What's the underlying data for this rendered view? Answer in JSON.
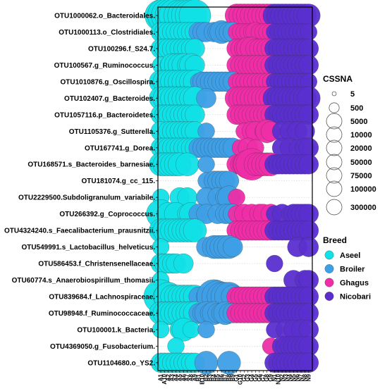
{
  "chart_data": {
    "type": "scatter",
    "subtype": "bubble",
    "grid": "horizontal dotted",
    "legend_placement": "right",
    "rows": [
      "OTU1000062.o_Bacteroidales.",
      "OTU1000113.o_Clostridiales.",
      "OTU100296.f_S24.7.",
      "OTU100567.g_Ruminococcus.",
      "OTU1010876.g_Oscillospira.",
      "OTU102407.g_Bacteroides.",
      "OTU1057116.p_Bacteroidetes.",
      "OTU1105376.g_Sutterella.",
      "OTU167741.g_Dorea.",
      "OTU168571.s_Bacteroides_barnesiae.",
      "OTU181074.g_cc_115.",
      "OTU2229500.Subdoligranulum_variabile.",
      "OTU266392.g_Coprococcus.",
      "OTU4324240.s_Faecalibacterium_prausnitzii.",
      "OTU549991.s_Lactobacillus_helveticus.",
      "OTU586453.f_Christensenellaceae.",
      "OTU60774.s_Anaerobiospirillum_thomasii.",
      "OTU839684.f_Lachnospiraceae.",
      "OTU98948.f_Ruminococcaceae.",
      "OTU100001.k_Bacteria.",
      "OTU4369050.g_Fusobacterium.",
      "OTU1104680.o_YS2."
    ],
    "samples": [
      "A1",
      "A10",
      "A2",
      "A3",
      "A4",
      "A5",
      "A6",
      "A7",
      "A8",
      "A9",
      "B1",
      "B10",
      "B2",
      "B3",
      "B4",
      "B5",
      "B6",
      "B7",
      "B8",
      "B9",
      "G1",
      "G10",
      "G2",
      "G3",
      "G4",
      "G5",
      "G6",
      "G7",
      "G8",
      "G9",
      "N1",
      "N10",
      "N2",
      "N3",
      "N4",
      "N5",
      "N6",
      "N7",
      "N8",
      "N9"
    ],
    "size_legend": {
      "title": "CSSNA",
      "entries": [
        {
          "label": "5",
          "value": 5
        },
        {
          "label": "500",
          "value": 500
        },
        {
          "label": "5000",
          "value": 5000
        },
        {
          "label": "10000",
          "value": 10000
        },
        {
          "label": "20000",
          "value": 20000
        },
        {
          "label": "50000",
          "value": 50000
        },
        {
          "label": "75000",
          "value": 75000
        },
        {
          "label": "100000",
          "value": 100000
        },
        {
          "label": "300000",
          "value": 300000
        }
      ]
    },
    "color_legend": {
      "title": "Breed",
      "entries": [
        {
          "label": "Aseel",
          "color": "#11e0e6",
          "prefix": "A"
        },
        {
          "label": "Broiler",
          "color": "#3f9fe6",
          "prefix": "B"
        },
        {
          "label": "Ghagus",
          "color": "#ee2da6",
          "prefix": "G"
        },
        {
          "label": "Nicobari",
          "color": "#5b2fcf",
          "prefix": "N"
        }
      ]
    },
    "values": [
      [
        75000,
        100000,
        100000,
        100000,
        100000,
        75000,
        75000,
        75000,
        75000,
        75000,
        0,
        0,
        0,
        0,
        0,
        0,
        0,
        0,
        0,
        0,
        20000,
        20000,
        20000,
        20000,
        20000,
        20000,
        20000,
        20000,
        20000,
        20000,
        20000,
        20000,
        20000,
        20000,
        20000,
        20000,
        20000,
        20000,
        20000,
        20000
      ],
      [
        10000,
        10000,
        10000,
        10000,
        10000,
        10000,
        10000,
        10000,
        10000,
        10000,
        10000,
        10000,
        10000,
        0,
        10000,
        10000,
        20000,
        10000,
        10000,
        10000,
        5000,
        5000,
        5000,
        5000,
        5000,
        10000,
        5000,
        5000,
        5000,
        5000,
        5000,
        5000,
        5000,
        5000,
        5000,
        5000,
        5000,
        5000,
        5000,
        5000
      ],
      [
        10000,
        10000,
        10000,
        10000,
        10000,
        10000,
        10000,
        10000,
        10000,
        10000,
        0,
        0,
        0,
        0,
        0,
        0,
        0,
        0,
        0,
        0,
        10000,
        10000,
        10000,
        20000,
        20000,
        10000,
        10000,
        10000,
        10000,
        10000,
        10000,
        10000,
        10000,
        10000,
        10000,
        10000,
        10000,
        10000,
        10000,
        10000
      ],
      [
        5000,
        0,
        5000,
        20000,
        20000,
        20000,
        20000,
        10000,
        20000,
        10000,
        0,
        0,
        0,
        0,
        0,
        0,
        0,
        0,
        0,
        0,
        10000,
        10000,
        10000,
        10000,
        10000,
        10000,
        10000,
        10000,
        10000,
        10000,
        10000,
        10000,
        10000,
        10000,
        10000,
        10000,
        10000,
        10000,
        10000,
        10000
      ],
      [
        20000,
        20000,
        20000,
        20000,
        20000,
        20000,
        20000,
        20000,
        20000,
        20000,
        5000,
        10000,
        10000,
        10000,
        10000,
        10000,
        10000,
        10000,
        10000,
        10000,
        5000,
        5000,
        5000,
        5000,
        5000,
        5000,
        5000,
        5000,
        5000,
        5000,
        5000,
        5000,
        5000,
        5000,
        5000,
        5000,
        5000,
        5000,
        5000,
        5000
      ],
      [
        20000,
        20000,
        20000,
        20000,
        20000,
        20000,
        20000,
        20000,
        20000,
        20000,
        0,
        0,
        10000,
        0,
        0,
        0,
        0,
        0,
        0,
        0,
        20000,
        20000,
        20000,
        20000,
        20000,
        20000,
        20000,
        20000,
        20000,
        20000,
        20000,
        20000,
        20000,
        20000,
        20000,
        20000,
        20000,
        20000,
        20000,
        20000
      ],
      [
        10000,
        10000,
        10000,
        10000,
        10000,
        10000,
        10000,
        10000,
        10000,
        10000,
        0,
        0,
        0,
        0,
        0,
        0,
        0,
        0,
        0,
        0,
        10000,
        10000,
        10000,
        10000,
        10000,
        10000,
        10000,
        10000,
        10000,
        10000,
        10000,
        10000,
        10000,
        10000,
        10000,
        10000,
        10000,
        10000,
        10000,
        10000
      ],
      [
        10000,
        0,
        10000,
        10000,
        10000,
        10000,
        10000,
        10000,
        10000,
        10000,
        0,
        0,
        5000,
        0,
        0,
        0,
        0,
        0,
        0,
        0,
        0,
        0,
        5000,
        0,
        10000,
        10000,
        0,
        5000,
        20000,
        10000,
        0,
        0,
        10000,
        0,
        10000,
        0,
        10000,
        0,
        10000,
        0
      ],
      [
        10000,
        10000,
        10000,
        10000,
        10000,
        10000,
        10000,
        10000,
        10000,
        10000,
        10000,
        10000,
        10000,
        10000,
        10000,
        10000,
        10000,
        10000,
        10000,
        10000,
        0,
        5000,
        0,
        10000,
        0,
        5000,
        0,
        0,
        0,
        0,
        0,
        0,
        10000,
        0,
        10000,
        0,
        5000,
        0,
        10000,
        10000
      ],
      [
        20000,
        20000,
        20000,
        20000,
        20000,
        20000,
        0,
        20000,
        0,
        0,
        0,
        0,
        5000,
        0,
        0,
        0,
        0,
        0,
        0,
        0,
        10000,
        10000,
        20000,
        50000,
        75000,
        20000,
        20000,
        20000,
        20000,
        20000,
        10000,
        10000,
        10000,
        10000,
        10000,
        10000,
        10000,
        10000,
        10000,
        10000
      ],
      [
        0,
        0,
        0,
        0,
        0,
        0,
        0,
        0,
        0,
        0,
        0,
        0,
        5000,
        0,
        10000,
        10000,
        10000,
        10000,
        10000,
        0,
        0,
        0,
        0,
        0,
        0,
        0,
        0,
        0,
        0,
        0,
        0,
        0,
        0,
        0,
        0,
        0,
        0,
        0,
        0,
        0
      ],
      [
        5000,
        0,
        0,
        0,
        0,
        10000,
        0,
        10000,
        0,
        0,
        0,
        0,
        10000,
        0,
        0,
        10000,
        0,
        10000,
        20000,
        0,
        5000,
        0,
        0,
        0,
        0,
        0,
        0,
        0,
        0,
        0,
        0,
        0,
        0,
        0,
        0,
        0,
        0,
        0,
        0,
        0
      ],
      [
        50000,
        0,
        20000,
        0,
        20000,
        0,
        0,
        10000,
        20000,
        0,
        10000,
        0,
        10000,
        0,
        0,
        10000,
        0,
        10000,
        10000,
        10000,
        5000,
        0,
        10000,
        0,
        10000,
        0,
        10000,
        10000,
        0,
        10000,
        5000,
        0,
        10000,
        0,
        5000,
        10000,
        10000,
        10000,
        10000,
        10000
      ],
      [
        20000,
        20000,
        20000,
        20000,
        20000,
        20000,
        20000,
        20000,
        20000,
        20000,
        0,
        0,
        0,
        0,
        0,
        0,
        0,
        0,
        0,
        0,
        10000,
        10000,
        10000,
        10000,
        10000,
        10000,
        10000,
        10000,
        10000,
        10000,
        10000,
        10000,
        10000,
        10000,
        10000,
        10000,
        10000,
        10000,
        10000,
        10000
      ],
      [
        5000,
        0,
        0,
        0,
        0,
        0,
        0,
        0,
        0,
        0,
        0,
        0,
        10000,
        0,
        20000,
        20000,
        20000,
        20000,
        20000,
        10000,
        0,
        0,
        0,
        0,
        0,
        0,
        0,
        0,
        0,
        0,
        0,
        0,
        0,
        0,
        0,
        0,
        10000,
        0,
        0,
        10000
      ],
      [
        10000,
        10000,
        10000,
        10000,
        10000,
        0,
        10000,
        0,
        0,
        0,
        0,
        0,
        0,
        0,
        0,
        0,
        0,
        0,
        0,
        0,
        0,
        0,
        0,
        0,
        0,
        0,
        0,
        0,
        0,
        0,
        5000,
        0,
        0,
        0,
        0,
        0,
        0,
        0,
        0,
        0
      ],
      [
        5000,
        0,
        0,
        0,
        0,
        0,
        0,
        0,
        0,
        0,
        0,
        0,
        0,
        0,
        0,
        0,
        0,
        0,
        0,
        0,
        0,
        0,
        0,
        0,
        0,
        0,
        0,
        0,
        0,
        0,
        0,
        0,
        0,
        0,
        0,
        10000,
        0,
        0,
        10000,
        10000
      ],
      [
        100000,
        20000,
        50000,
        20000,
        20000,
        20000,
        20000,
        20000,
        20000,
        20000,
        10000,
        0,
        10000,
        0,
        100000,
        75000,
        50000,
        50000,
        50000,
        20000,
        10000,
        10000,
        10000,
        10000,
        10000,
        10000,
        10000,
        10000,
        10000,
        10000,
        10000,
        10000,
        10000,
        10000,
        10000,
        10000,
        10000,
        10000,
        10000,
        10000
      ],
      [
        20000,
        20000,
        20000,
        20000,
        20000,
        20000,
        20000,
        20000,
        20000,
        20000,
        10000,
        10000,
        20000,
        10000,
        20000,
        10000,
        10000,
        20000,
        10000,
        10000,
        10000,
        10000,
        10000,
        10000,
        10000,
        10000,
        10000,
        10000,
        10000,
        10000,
        10000,
        10000,
        10000,
        10000,
        10000,
        10000,
        10000,
        10000,
        10000,
        10000
      ],
      [
        5000,
        0,
        0,
        0,
        0,
        10000,
        20000,
        0,
        5000,
        0,
        0,
        0,
        5000,
        0,
        0,
        0,
        0,
        0,
        0,
        0,
        0,
        0,
        0,
        0,
        0,
        0,
        0,
        0,
        0,
        0,
        5000,
        0,
        0,
        10000,
        0,
        10000,
        0,
        10000,
        0,
        10000
      ],
      [
        0,
        0,
        0,
        0,
        5000,
        0,
        0,
        0,
        0,
        0,
        0,
        0,
        0,
        0,
        0,
        0,
        0,
        0,
        0,
        0,
        0,
        0,
        0,
        0,
        0,
        0,
        0,
        0,
        0,
        5000,
        0,
        0,
        10000,
        10000,
        10000,
        10000,
        10000,
        10000,
        10000,
        10000
      ],
      [
        10000,
        10000,
        10000,
        10000,
        10000,
        10000,
        10000,
        10000,
        10000,
        10000,
        0,
        0,
        20000,
        0,
        0,
        0,
        0,
        0,
        20000,
        0,
        0,
        0,
        0,
        0,
        0,
        0,
        0,
        0,
        0,
        0,
        10000,
        10000,
        10000,
        10000,
        10000,
        10000,
        10000,
        10000,
        10000,
        10000
      ]
    ]
  }
}
